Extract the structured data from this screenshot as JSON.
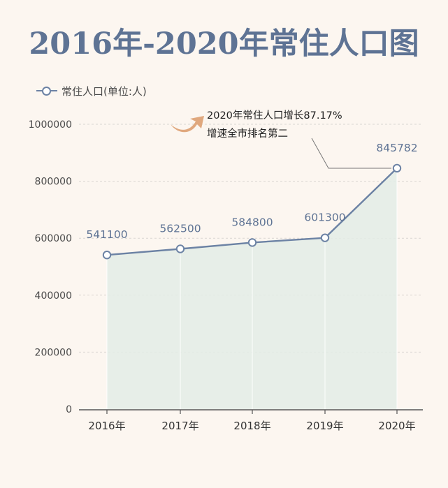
{
  "chart_data": {
    "type": "area",
    "title": "2016年-2020年常住人口图",
    "legend": {
      "label": "常住人口(单位:人)",
      "placement": "top-left"
    },
    "categories": [
      "2016年",
      "2017年",
      "2018年",
      "2019年",
      "2020年"
    ],
    "series": [
      {
        "name": "常住人口(单位:人)",
        "values": [
          541100,
          562500,
          584800,
          601300,
          845782
        ]
      }
    ],
    "data_labels": [
      "541100",
      "562500",
      "584800",
      "601300",
      "845782"
    ],
    "yticks": [
      "0",
      "200000",
      "400000",
      "600000",
      "800000",
      "1000000"
    ],
    "ylim": [
      0,
      1000000
    ],
    "grid": true,
    "annotation": {
      "line1": "2020年常住人口增长87.17%",
      "line2": "增速全市排名第二"
    },
    "colors": {
      "line": "#6c82a4",
      "fill": "#e3ece6",
      "title": "#5e7394",
      "arrow": "#e0a87e",
      "grid": "#d9d6d2"
    }
  }
}
